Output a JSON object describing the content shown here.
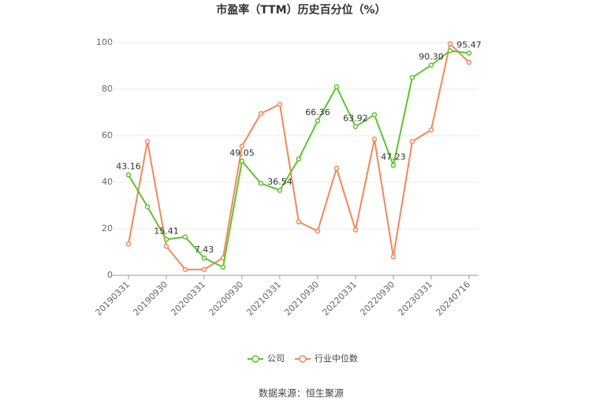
{
  "chart_data": {
    "type": "line",
    "title": "市盈率（TTM）历史百分位（%）",
    "categories": [
      "20190331",
      null,
      "20190930",
      null,
      "20200331",
      null,
      "20200930",
      null,
      "20210331",
      null,
      "20210930",
      null,
      "20220331",
      null,
      "20220930",
      null,
      "20230331",
      null,
      "20240716"
    ],
    "series": [
      {
        "name": "公司",
        "color": "#5ec42c",
        "values": [
          43.16,
          29.5,
          15.41,
          16.5,
          7.43,
          3.5,
          49.05,
          39.5,
          36.54,
          50,
          66.36,
          81,
          63.92,
          69,
          47.23,
          85,
          90.3,
          96.5,
          95.47
        ],
        "value_labels": [
          "43.16",
          null,
          "15.41",
          null,
          "7.43",
          null,
          "49.05",
          null,
          "36.54",
          null,
          "66.36",
          null,
          "63.92",
          null,
          "47.23",
          null,
          "90.30",
          null,
          "95.47"
        ]
      },
      {
        "name": "行业中位数",
        "color": "#f4875a",
        "values": [
          13.5,
          57.5,
          12.5,
          2.5,
          2.5,
          7.5,
          55.5,
          69.5,
          73.5,
          23,
          19,
          46,
          19.5,
          58.5,
          8,
          57.5,
          62.5,
          99.5,
          91.5
        ]
      }
    ],
    "ylim": [
      0,
      100
    ],
    "yticks": [
      0,
      20,
      40,
      60,
      80,
      100
    ],
    "grid": true,
    "source": "数据来源：恒生聚源"
  }
}
